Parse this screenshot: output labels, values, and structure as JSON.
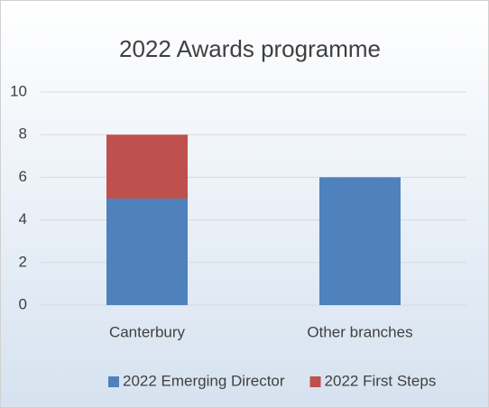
{
  "chart_data": {
    "type": "bar",
    "stacked": true,
    "title": "2022 Awards programme",
    "categories": [
      "Canterbury",
      "Other branches"
    ],
    "series": [
      {
        "name": "2022 Emerging Director",
        "color": "#4f81bd",
        "values": [
          5,
          6
        ]
      },
      {
        "name": "2022 First Steps",
        "color": "#c0504d",
        "values": [
          3,
          0
        ]
      }
    ],
    "ylim": [
      0,
      10
    ],
    "yticks": [
      0,
      2,
      4,
      6,
      8,
      10
    ],
    "grid": true,
    "legend": "bottom"
  }
}
